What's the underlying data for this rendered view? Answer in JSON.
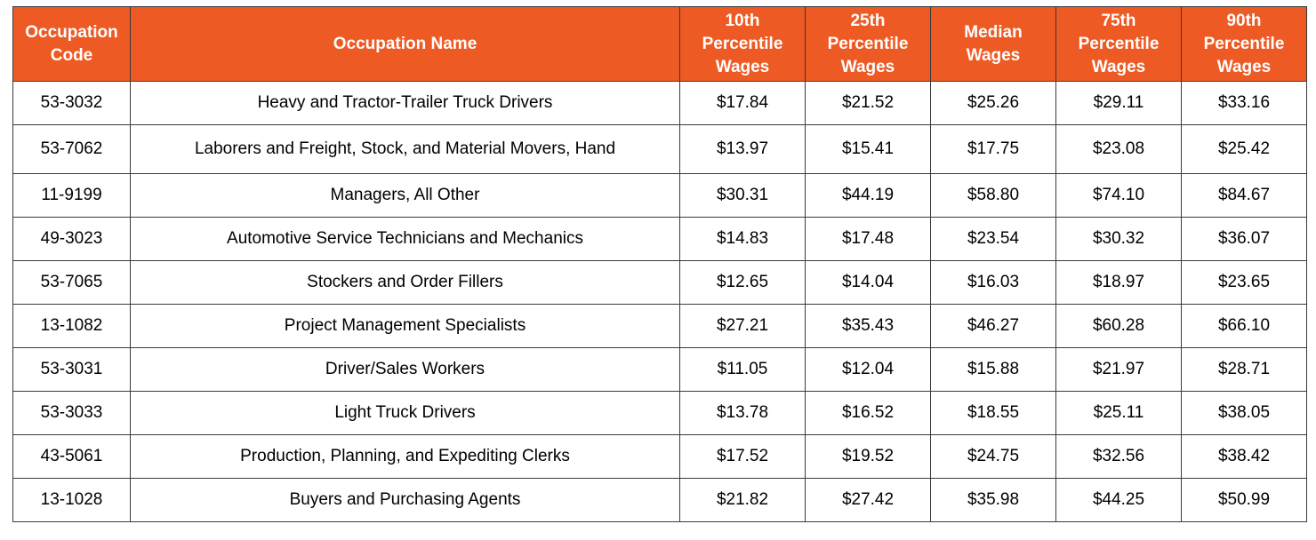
{
  "colors": {
    "header_bg": "#ee5a24",
    "header_text": "#ffffff",
    "border": "#3a3a3a"
  },
  "table": {
    "columns": [
      {
        "key": "code",
        "lines": [
          "Occupation",
          "Code"
        ]
      },
      {
        "key": "name",
        "lines": [
          "Occupation Name"
        ]
      },
      {
        "key": "p10",
        "lines": [
          "10th",
          "Percentile",
          "Wages"
        ]
      },
      {
        "key": "p25",
        "lines": [
          "25th",
          "Percentile",
          "Wages"
        ]
      },
      {
        "key": "median",
        "lines": [
          "Median",
          "Wages"
        ]
      },
      {
        "key": "p75",
        "lines": [
          "75th",
          "Percentile",
          "Wages"
        ]
      },
      {
        "key": "p90",
        "lines": [
          "90th",
          "Percentile",
          "Wages"
        ]
      }
    ],
    "rows": [
      [
        "53-3032",
        "Heavy and Tractor-Trailer Truck Drivers",
        "$17.84",
        "$21.52",
        "$25.26",
        "$29.11",
        "$33.16"
      ],
      [
        "53-7062",
        "Laborers and Freight, Stock, and Material Movers, Hand",
        "$13.97",
        "$15.41",
        "$17.75",
        "$23.08",
        "$25.42"
      ],
      [
        "11-9199",
        "Managers, All Other",
        "$30.31",
        "$44.19",
        "$58.80",
        "$74.10",
        "$84.67"
      ],
      [
        "49-3023",
        "Automotive Service Technicians and Mechanics",
        "$14.83",
        "$17.48",
        "$23.54",
        "$30.32",
        "$36.07"
      ],
      [
        "53-7065",
        "Stockers and Order Fillers",
        "$12.65",
        "$14.04",
        "$16.03",
        "$18.97",
        "$23.65"
      ],
      [
        "13-1082",
        "Project Management Specialists",
        "$27.21",
        "$35.43",
        "$46.27",
        "$60.28",
        "$66.10"
      ],
      [
        "53-3031",
        "Driver/Sales Workers",
        "$11.05",
        "$12.04",
        "$15.88",
        "$21.97",
        "$28.71"
      ],
      [
        "53-3033",
        "Light Truck Drivers",
        "$13.78",
        "$16.52",
        "$18.55",
        "$25.11",
        "$38.05"
      ],
      [
        "43-5061",
        "Production, Planning, and Expediting Clerks",
        "$17.52",
        "$19.52",
        "$24.75",
        "$32.56",
        "$38.42"
      ],
      [
        "13-1028",
        "Buyers and Purchasing Agents",
        "$21.82",
        "$27.42",
        "$35.98",
        "$44.25",
        "$50.99"
      ]
    ]
  }
}
